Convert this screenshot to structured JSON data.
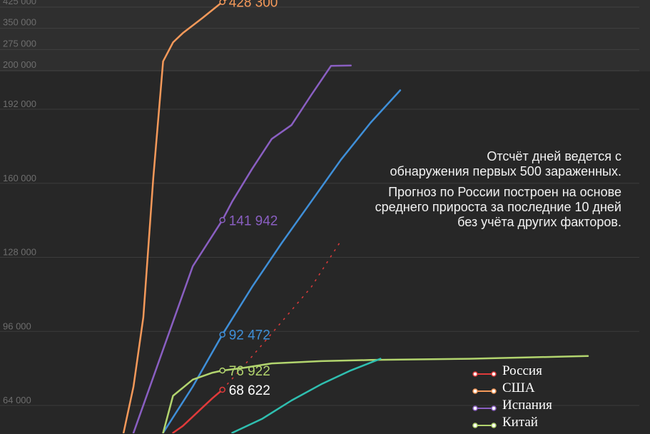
{
  "note": {
    "line1": "Отсчёт дней ведется с",
    "line2": "обнаружения первых 500 зараженных.",
    "line3": "Прогноз по России построен на основе",
    "line4": "среднего прироста за последние 10 дней",
    "line5": "без учёта других факторов."
  },
  "chart_data": {
    "type": "line",
    "title": "",
    "xlabel": "",
    "ylabel": "",
    "upper_panel": {
      "ylim": [
        200000,
        450000
      ],
      "yticks": [
        "200 000",
        "275 000",
        "350 000",
        "425 000"
      ],
      "grid": true
    },
    "lower_panel": {
      "ylim": [
        50000,
        200000
      ],
      "yticks": [
        "64 000",
        "96 000",
        "128 000",
        "160 000",
        "192 000"
      ],
      "grid": true
    },
    "xlim": [
      0,
      52
    ],
    "legend": {
      "placement": "bottom-right",
      "entries": [
        "Россия",
        "США",
        "Испания",
        "Китай"
      ]
    },
    "series": [
      {
        "name": "Россия",
        "color": "#e03a3a",
        "x": [
          10,
          11,
          12,
          13,
          14,
          15
        ],
        "y": [
          50000,
          53000,
          57000,
          61000,
          65000,
          68622
        ],
        "forecast": {
          "style": "dashed",
          "x": [
            15,
            18,
            21,
            24,
            27
          ],
          "y": [
            68622,
            83000,
            98000,
            113000,
            133000
          ]
        },
        "callout": {
          "x": 15,
          "y": 68622,
          "label": "68 622",
          "color": "#ffffff"
        }
      },
      {
        "name": "США",
        "color": "#f5995a",
        "x": [
          5,
          6,
          7,
          8,
          9,
          10,
          11,
          12,
          13,
          14,
          15,
          16
        ],
        "y": [
          50000,
          70000,
          100000,
          160000,
          218000,
          285000,
          318000,
          345000,
          372000,
          400000,
          428300,
          452000
        ],
        "callout": {
          "x": 15,
          "y": 428300,
          "label": "428 300",
          "color": "#f5995a"
        }
      },
      {
        "name": "Испания",
        "color": "#8a5fc2",
        "x": [
          6,
          9,
          12,
          15,
          16,
          18,
          20,
          22,
          24,
          26,
          28
        ],
        "y": [
          50000,
          86000,
          122000,
          141942,
          150000,
          164000,
          177000,
          183000,
          196000,
          202000,
          203000
        ],
        "callout": {
          "x": 15,
          "y": 141942,
          "label": "141 942",
          "color": "#8a5fc2"
        }
      },
      {
        "color": "#3f8fd8",
        "x": [
          9,
          12,
          15,
          18,
          21,
          24,
          27,
          30,
          33
        ],
        "y": [
          50000,
          70000,
          92472,
          113000,
          132000,
          150000,
          168000,
          184000,
          198000
        ],
        "callout": {
          "x": 15,
          "y": 92472,
          "label": "92 472",
          "color": "#3f8fd8"
        }
      },
      {
        "name": "Китай",
        "color": "#b2d46e",
        "x": [
          9,
          10,
          12,
          14,
          15,
          17,
          20,
          25,
          30,
          40,
          50,
          52
        ],
        "y": [
          50000,
          66000,
          73000,
          76000,
          76922,
          78000,
          80000,
          81000,
          81500,
          82000,
          83000,
          83200
        ],
        "callout": {
          "x": 15,
          "y": 76922,
          "label": "76 922",
          "color": "#b2d46e"
        }
      },
      {
        "color": "#2fbfb0",
        "x": [
          16,
          19,
          22,
          25,
          28,
          31
        ],
        "y": [
          50000,
          56000,
          64000,
          71000,
          77000,
          82000
        ]
      }
    ]
  }
}
